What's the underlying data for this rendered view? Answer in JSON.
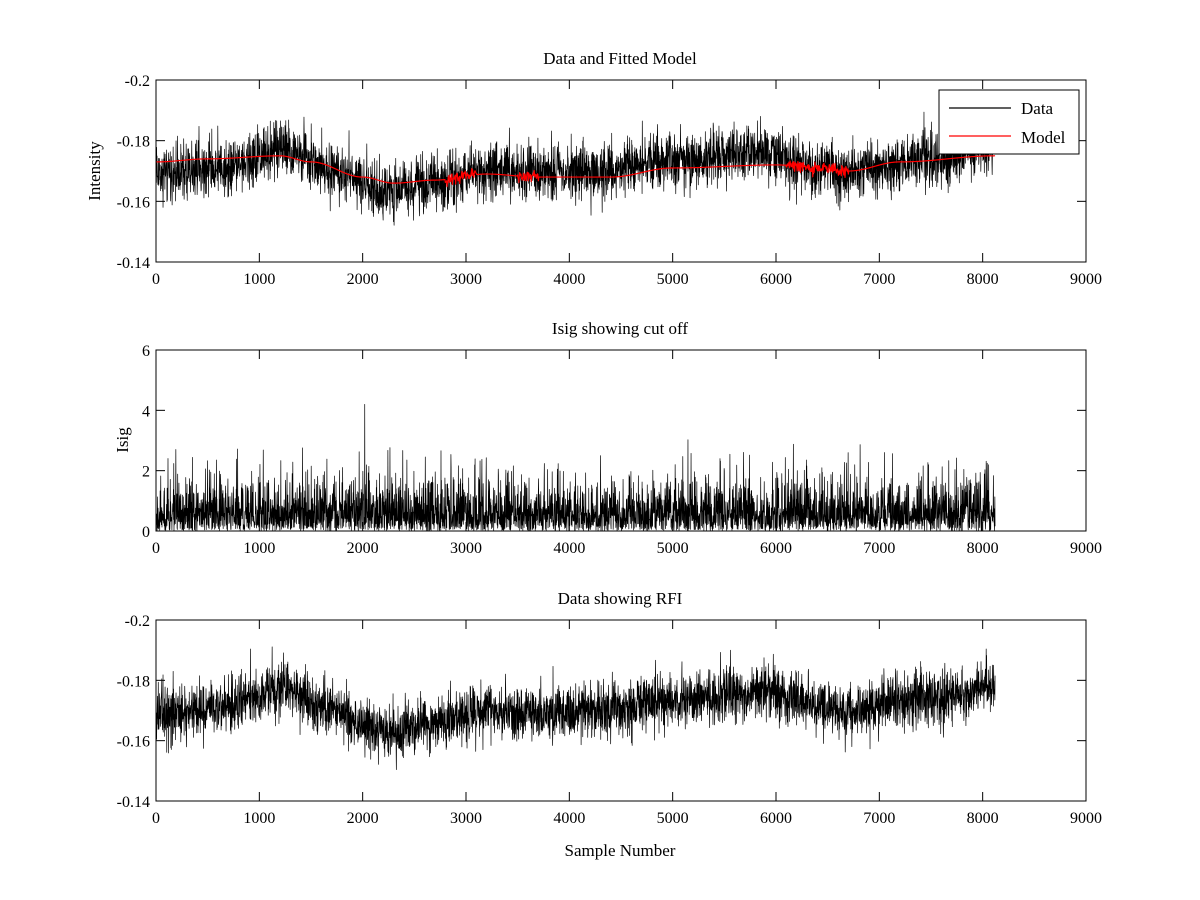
{
  "figure": {
    "background": "#ffffff",
    "axes_color": "#000000"
  },
  "chart_data": [
    {
      "type": "line",
      "title": "Data and Fitted Model",
      "xlabel": "",
      "ylabel": "Intensity",
      "xlim": [
        0,
        9000
      ],
      "ylim": [
        -0.2,
        -0.14
      ],
      "y_axis_reversed": true,
      "xticks": [
        0,
        1000,
        2000,
        3000,
        4000,
        5000,
        6000,
        7000,
        8000,
        9000
      ],
      "xtick_labels": [
        "0",
        "1000",
        "2000",
        "3000",
        "4000",
        "5000",
        "6000",
        "7000",
        "8000",
        "9000"
      ],
      "yticks": [
        -0.14,
        -0.16,
        -0.18,
        -0.2
      ],
      "ytick_labels": [
        "-0.14",
        "-0.16",
        "-0.18",
        "-0.2"
      ],
      "grid": false,
      "legend": {
        "position": "top-right",
        "entries": [
          "Data",
          "Model"
        ]
      },
      "series": [
        {
          "name": "Data",
          "color": "#000000",
          "x_range": [
            0,
            8120
          ],
          "noise_sd": 0.0045,
          "trend": [
            [
              0,
              -0.169
            ],
            [
              600,
              -0.171
            ],
            [
              1250,
              -0.177
            ],
            [
              1700,
              -0.17
            ],
            [
              2200,
              -0.163
            ],
            [
              2700,
              -0.166
            ],
            [
              3200,
              -0.17
            ],
            [
              3700,
              -0.169
            ],
            [
              4300,
              -0.17
            ],
            [
              5000,
              -0.174
            ],
            [
              5900,
              -0.176
            ],
            [
              6500,
              -0.171
            ],
            [
              6700,
              -0.17
            ],
            [
              7500,
              -0.174
            ],
            [
              8120,
              -0.178
            ]
          ]
        },
        {
          "name": "Model",
          "color": "#ff0000",
          "x_range": [
            0,
            8120
          ],
          "curve": [
            [
              0,
              -0.173
            ],
            [
              500,
              -0.174
            ],
            [
              1200,
              -0.175
            ],
            [
              1500,
              -0.173
            ],
            [
              2000,
              -0.168
            ],
            [
              2300,
              -0.166
            ],
            [
              2700,
              -0.167
            ],
            [
              3200,
              -0.169
            ],
            [
              3700,
              -0.168
            ],
            [
              4400,
              -0.168
            ],
            [
              5000,
              -0.171
            ],
            [
              6000,
              -0.172
            ],
            [
              6500,
              -0.171
            ],
            [
              6700,
              -0.17
            ],
            [
              7200,
              -0.173
            ],
            [
              8120,
              -0.175
            ]
          ],
          "jitter_regions": [
            [
              2800,
              3100
            ],
            [
              3500,
              3700
            ],
            [
              6100,
              6700
            ]
          ]
        }
      ]
    },
    {
      "type": "line",
      "title": "Isig showing cut off",
      "xlabel": "",
      "ylabel": "Isig",
      "xlim": [
        0,
        9000
      ],
      "ylim": [
        0,
        6
      ],
      "xticks": [
        0,
        1000,
        2000,
        3000,
        4000,
        5000,
        6000,
        7000,
        8000,
        9000
      ],
      "xtick_labels": [
        "0",
        "1000",
        "2000",
        "3000",
        "4000",
        "5000",
        "6000",
        "7000",
        "8000",
        "9000"
      ],
      "yticks": [
        0,
        2,
        4,
        6
      ],
      "ytick_labels": [
        "0",
        "2",
        "4",
        "6"
      ],
      "grid": false,
      "series": [
        {
          "color": "#000000",
          "x_range": [
            0,
            8120
          ],
          "typical_value": 0.8,
          "max_value": 4.2,
          "peak_at": 2020
        }
      ]
    },
    {
      "type": "line",
      "title": "Data showing RFI",
      "xlabel": "Sample Number",
      "ylabel": "",
      "xlim": [
        0,
        9000
      ],
      "ylim": [
        -0.2,
        -0.14
      ],
      "y_axis_reversed": true,
      "xticks": [
        0,
        1000,
        2000,
        3000,
        4000,
        5000,
        6000,
        7000,
        8000,
        9000
      ],
      "xtick_labels": [
        "0",
        "1000",
        "2000",
        "3000",
        "4000",
        "5000",
        "6000",
        "7000",
        "8000",
        "9000"
      ],
      "yticks": [
        -0.14,
        -0.16,
        -0.18,
        -0.2
      ],
      "ytick_labels": [
        "-0.14",
        "-0.16",
        "-0.18",
        "-0.2"
      ],
      "grid": false,
      "series": [
        {
          "color": "#000000",
          "x_range": [
            0,
            8120
          ],
          "noise_sd": 0.0045,
          "trend": [
            [
              0,
              -0.169
            ],
            [
              600,
              -0.171
            ],
            [
              1250,
              -0.177
            ],
            [
              1700,
              -0.17
            ],
            [
              2200,
              -0.163
            ],
            [
              2700,
              -0.166
            ],
            [
              3200,
              -0.17
            ],
            [
              3700,
              -0.169
            ],
            [
              4300,
              -0.17
            ],
            [
              5000,
              -0.174
            ],
            [
              5900,
              -0.176
            ],
            [
              6500,
              -0.171
            ],
            [
              6700,
              -0.17
            ],
            [
              7500,
              -0.174
            ],
            [
              8120,
              -0.178
            ]
          ]
        }
      ]
    }
  ]
}
